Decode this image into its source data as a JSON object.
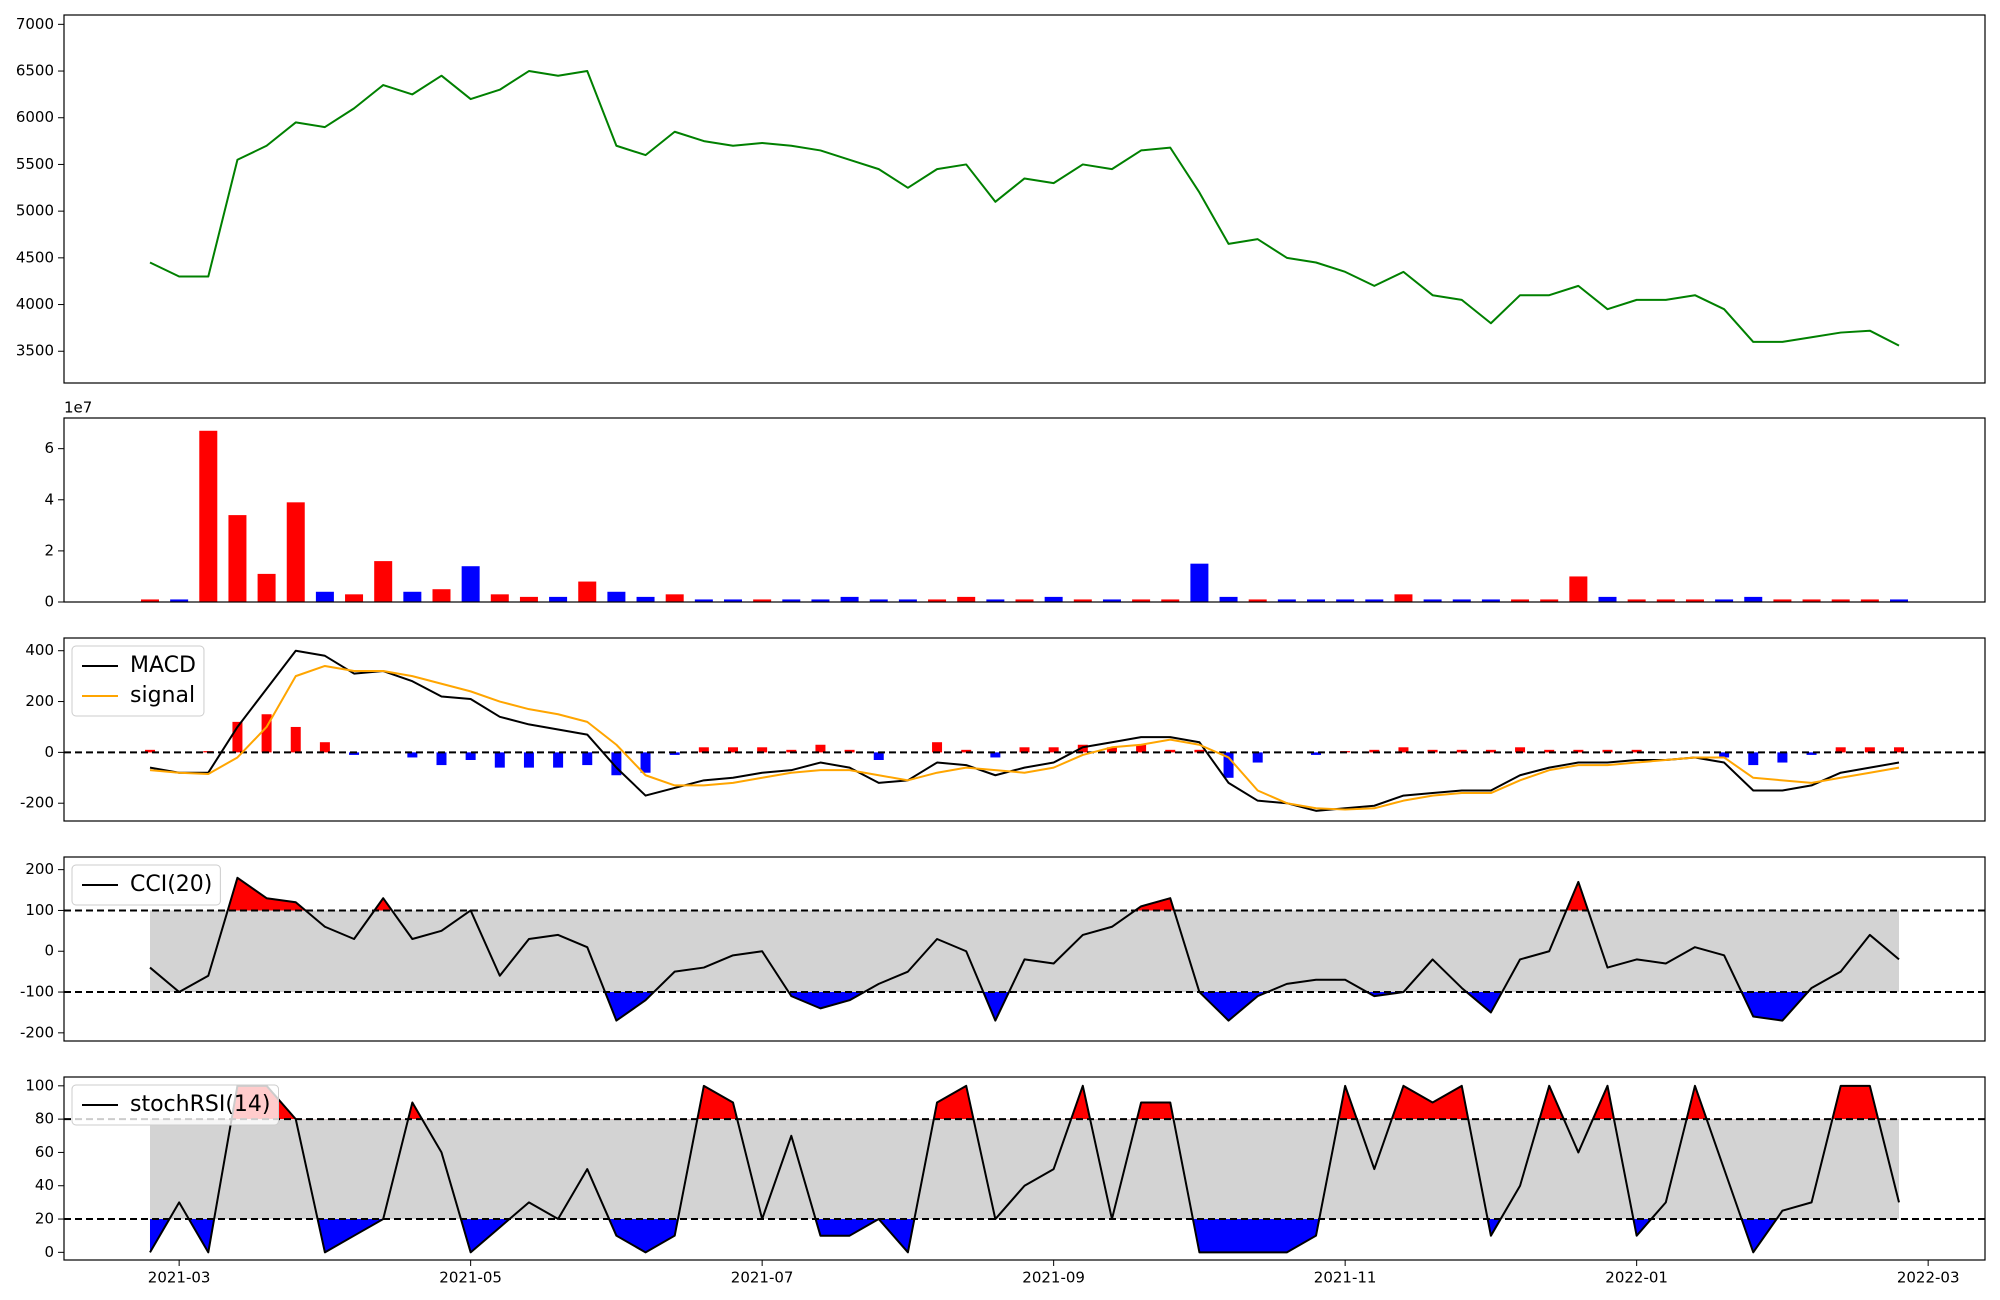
{
  "chart_data": [
    {
      "type": "line",
      "x": [
        2.8,
        3.0,
        3.2,
        3.4,
        3.6,
        3.8,
        4.0,
        4.2,
        4.4,
        4.6,
        4.8,
        5.0,
        5.2,
        5.4,
        5.6,
        5.8,
        6.0,
        6.2,
        6.4,
        6.6,
        6.8,
        7.0,
        7.2,
        7.4,
        7.6,
        7.8,
        8.0,
        8.2,
        8.4,
        8.6,
        8.8,
        9.0,
        9.2,
        9.4,
        9.6,
        9.8,
        10.0,
        10.2,
        10.4,
        10.6,
        10.8,
        11.0,
        11.2,
        11.4,
        11.6,
        11.8,
        12.0,
        12.2,
        12.4,
        12.6,
        12.8,
        13.0,
        13.2,
        13.4,
        13.6,
        13.8,
        14.0,
        14.2,
        14.4,
        14.6,
        14.8
      ],
      "xlim": [
        2.21,
        15.39
      ],
      "ylim": [
        3160,
        7100
      ],
      "yticks": [
        3500,
        4000,
        4500,
        5000,
        5500,
        6000,
        6500,
        7000
      ],
      "series": [
        {
          "color": "green",
          "values": [
            4450,
            4300,
            4300,
            5550,
            5700,
            5950,
            5900,
            6100,
            6350,
            6250,
            6450,
            6200,
            6300,
            6500,
            6450,
            6500,
            5700,
            5600,
            5850,
            5750,
            5700,
            5730,
            5700,
            5650,
            5550,
            5450,
            5250,
            5450,
            5500,
            5100,
            5350,
            5300,
            5500,
            5450,
            5650,
            5680,
            5200,
            4650,
            4700,
            4500,
            4450,
            4350,
            4200,
            4350,
            4100,
            4050,
            3800,
            4100,
            4100,
            4200,
            3950,
            4050,
            4050,
            4100,
            3950,
            3600,
            3600,
            3650,
            3700,
            3720,
            3560
          ]
        }
      ]
    },
    {
      "type": "bar",
      "offset_label": "1e7",
      "ylim": [
        0,
        7.2
      ],
      "yticks": [
        0,
        2,
        4,
        6
      ],
      "up_color": "red",
      "down_color": "blue",
      "values": [
        0.1,
        0.1,
        6.7,
        3.4,
        1.1,
        3.9,
        0.4,
        0.3,
        1.6,
        0.4,
        0.5,
        1.4,
        0.3,
        0.2,
        0.2,
        0.8,
        0.4,
        0.2,
        0.3,
        0.1,
        0.1,
        0.1,
        0.1,
        0.1,
        0.2,
        0.1,
        0.1,
        0.1,
        0.2,
        0.1,
        0.1,
        0.2,
        0.1,
        0.1,
        0.1,
        0.1,
        1.5,
        0.2,
        0.1,
        0.1,
        0.1,
        0.1,
        0.1,
        0.3,
        0.1,
        0.1,
        0.1,
        0.1,
        0.1,
        1.0,
        0.2,
        0.1,
        0.1,
        0.1,
        0.1,
        0.2,
        0.1,
        0.1,
        0.1,
        0.1,
        0.1
      ]
    },
    {
      "type": "line",
      "ylim": [
        -270,
        450
      ],
      "yticks": [
        -200,
        0,
        200,
        400
      ],
      "hlines": [
        0
      ],
      "legend": "upper left",
      "hist": {
        "up_color": "red",
        "down_color": "blue",
        "values": [
          10,
          0,
          5,
          120,
          150,
          100,
          40,
          -10,
          0,
          -20,
          -50,
          -30,
          -60,
          -60,
          -60,
          -50,
          -90,
          -80,
          -10,
          20,
          20,
          20,
          10,
          30,
          10,
          -30,
          0,
          40,
          10,
          -20,
          20,
          20,
          30,
          20,
          30,
          10,
          10,
          -100,
          -40,
          0,
          -10,
          5,
          10,
          20,
          10,
          10,
          10,
          20,
          10,
          10,
          10,
          10,
          0,
          0,
          -20,
          -50,
          -40,
          -10,
          20,
          20,
          20
        ]
      },
      "series": [
        {
          "name": "MACD",
          "color": "black",
          "values": [
            -60,
            -80,
            -80,
            100,
            250,
            400,
            380,
            310,
            320,
            280,
            220,
            210,
            140,
            110,
            90,
            70,
            -60,
            -170,
            -140,
            -110,
            -100,
            -80,
            -70,
            -40,
            -60,
            -120,
            -110,
            -40,
            -50,
            -90,
            -60,
            -40,
            20,
            40,
            60,
            60,
            40,
            -120,
            -190,
            -200,
            -230,
            -220,
            -210,
            -170,
            -160,
            -150,
            -150,
            -90,
            -60,
            -40,
            -40,
            -30,
            -30,
            -20,
            -40,
            -150,
            -150,
            -130,
            -80,
            -60,
            -40
          ]
        },
        {
          "name": "signal",
          "color": "orange",
          "values": [
            -70,
            -80,
            -85,
            -20,
            100,
            300,
            340,
            320,
            320,
            300,
            270,
            240,
            200,
            170,
            150,
            120,
            30,
            -90,
            -130,
            -130,
            -120,
            -100,
            -80,
            -70,
            -70,
            -90,
            -110,
            -80,
            -60,
            -70,
            -80,
            -60,
            -10,
            20,
            30,
            50,
            30,
            -20,
            -150,
            -200,
            -220,
            -225,
            -220,
            -190,
            -170,
            -160,
            -160,
            -110,
            -70,
            -50,
            -50,
            -40,
            -30,
            -20,
            -20,
            -100,
            -110,
            -120,
            -100,
            -80,
            -60
          ]
        }
      ]
    },
    {
      "type": "line",
      "ylim": [
        -220,
        231
      ],
      "yticks": [
        -200,
        -100,
        0,
        100,
        200
      ],
      "hlines": [
        -100,
        100
      ],
      "legend": "upper left",
      "band": {
        "range": [
          -100,
          100
        ],
        "color": "#d3d3d3"
      },
      "fill_above": {
        "value": 100,
        "color": "red"
      },
      "fill_below": {
        "value": -100,
        "color": "blue"
      },
      "series": [
        {
          "name": "CCI(20)",
          "color": "black",
          "values": [
            -40,
            -100,
            -60,
            180,
            130,
            120,
            60,
            30,
            130,
            30,
            50,
            100,
            -60,
            30,
            40,
            10,
            -170,
            -120,
            -50,
            -40,
            -10,
            0,
            -110,
            -140,
            -120,
            -80,
            -50,
            30,
            0,
            -170,
            -20,
            -30,
            40,
            60,
            110,
            130,
            -100,
            -170,
            -110,
            -80,
            -70,
            -70,
            -110,
            -100,
            -20,
            -90,
            -150,
            -20,
            0,
            170,
            -40,
            -20,
            -30,
            10,
            -10,
            -160,
            -170,
            -90,
            -50,
            40,
            -20
          ]
        }
      ]
    },
    {
      "type": "line",
      "ylim": [
        -4.6,
        105.3
      ],
      "yticks": [
        0,
        20,
        40,
        60,
        80,
        100
      ],
      "hlines": [
        20,
        80
      ],
      "legend": "upper left",
      "band": {
        "range": [
          20,
          80
        ],
        "color": "#d3d3d3"
      },
      "fill_above": {
        "value": 80,
        "color": "red"
      },
      "fill_below": {
        "value": 20,
        "color": "blue"
      },
      "xticks": [
        {
          "value": 3,
          "label": "2021-03"
        },
        {
          "value": 5,
          "label": "2021-05"
        },
        {
          "value": 7,
          "label": "2021-07"
        },
        {
          "value": 9,
          "label": "2021-09"
        },
        {
          "value": 11,
          "label": "2021-11"
        },
        {
          "value": 13,
          "label": "2022-01"
        },
        {
          "value": 15,
          "label": "2022-03"
        }
      ],
      "series": [
        {
          "name": "stochRSI(14)",
          "color": "black",
          "values": [
            0,
            30,
            0,
            100,
            100,
            80,
            0,
            10,
            20,
            90,
            60,
            0,
            15,
            30,
            20,
            50,
            10,
            0,
            10,
            100,
            90,
            20,
            70,
            10,
            10,
            20,
            0,
            90,
            100,
            20,
            40,
            50,
            100,
            20,
            90,
            90,
            0,
            0,
            0,
            0,
            10,
            100,
            50,
            100,
            90,
            100,
            10,
            40,
            100,
            60,
            100,
            10,
            30,
            100,
            50,
            0,
            25,
            30,
            100,
            100,
            30
          ]
        }
      ]
    }
  ]
}
